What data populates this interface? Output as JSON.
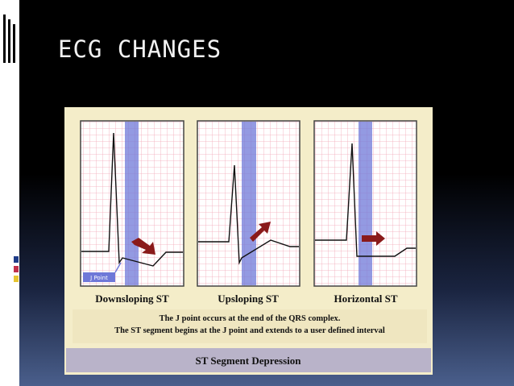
{
  "title": "ECG CHANGES",
  "panels": [
    {
      "label": "Downsloping ST",
      "marker": "J Point"
    },
    {
      "label": "Upsloping ST"
    },
    {
      "label": "Horizontal ST"
    }
  ],
  "caption": [
    "The J point occurs at the end of the QRS complex.",
    "The ST segment begins at the J point and extends to a user defined interval"
  ],
  "figure_title": "ST Segment Depression"
}
